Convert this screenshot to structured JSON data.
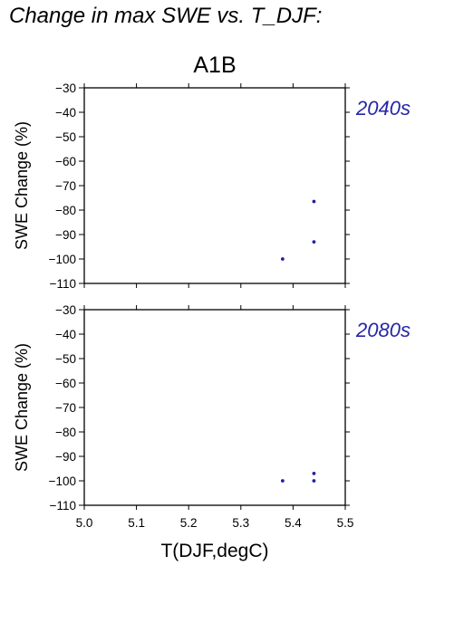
{
  "page_title": "Change in max SWE vs. T_DJF:",
  "chart_data": {
    "type": "scatter",
    "title": "A1B",
    "xlabel": "T(DJF,degC)",
    "xlim": [
      5.0,
      5.5
    ],
    "xticks": [
      "5.0",
      "5.1",
      "5.2",
      "5.3",
      "5.4",
      "5.5"
    ],
    "grid": false,
    "marker_color": "#1f1fa0",
    "panel_label_color": "#2525a8",
    "panels": [
      {
        "label": "2040s",
        "ylabel": "SWE Change (%)",
        "ylim": [
          -110,
          -30
        ],
        "yticks": [
          "−30",
          "−40",
          "−50",
          "−60",
          "−70",
          "−80",
          "−90",
          "−100",
          "−110"
        ],
        "x": [
          5.38,
          5.44,
          5.44
        ],
        "y": [
          -100,
          -76.5,
          -93
        ]
      },
      {
        "label": "2080s",
        "ylabel": "SWE Change (%)",
        "ylim": [
          -110,
          -30
        ],
        "yticks": [
          "−30",
          "−40",
          "−50",
          "−60",
          "−70",
          "−80",
          "−90",
          "−100",
          "−110"
        ],
        "x": [
          5.38,
          5.44,
          5.44
        ],
        "y": [
          -100,
          -97,
          -100
        ]
      }
    ]
  }
}
